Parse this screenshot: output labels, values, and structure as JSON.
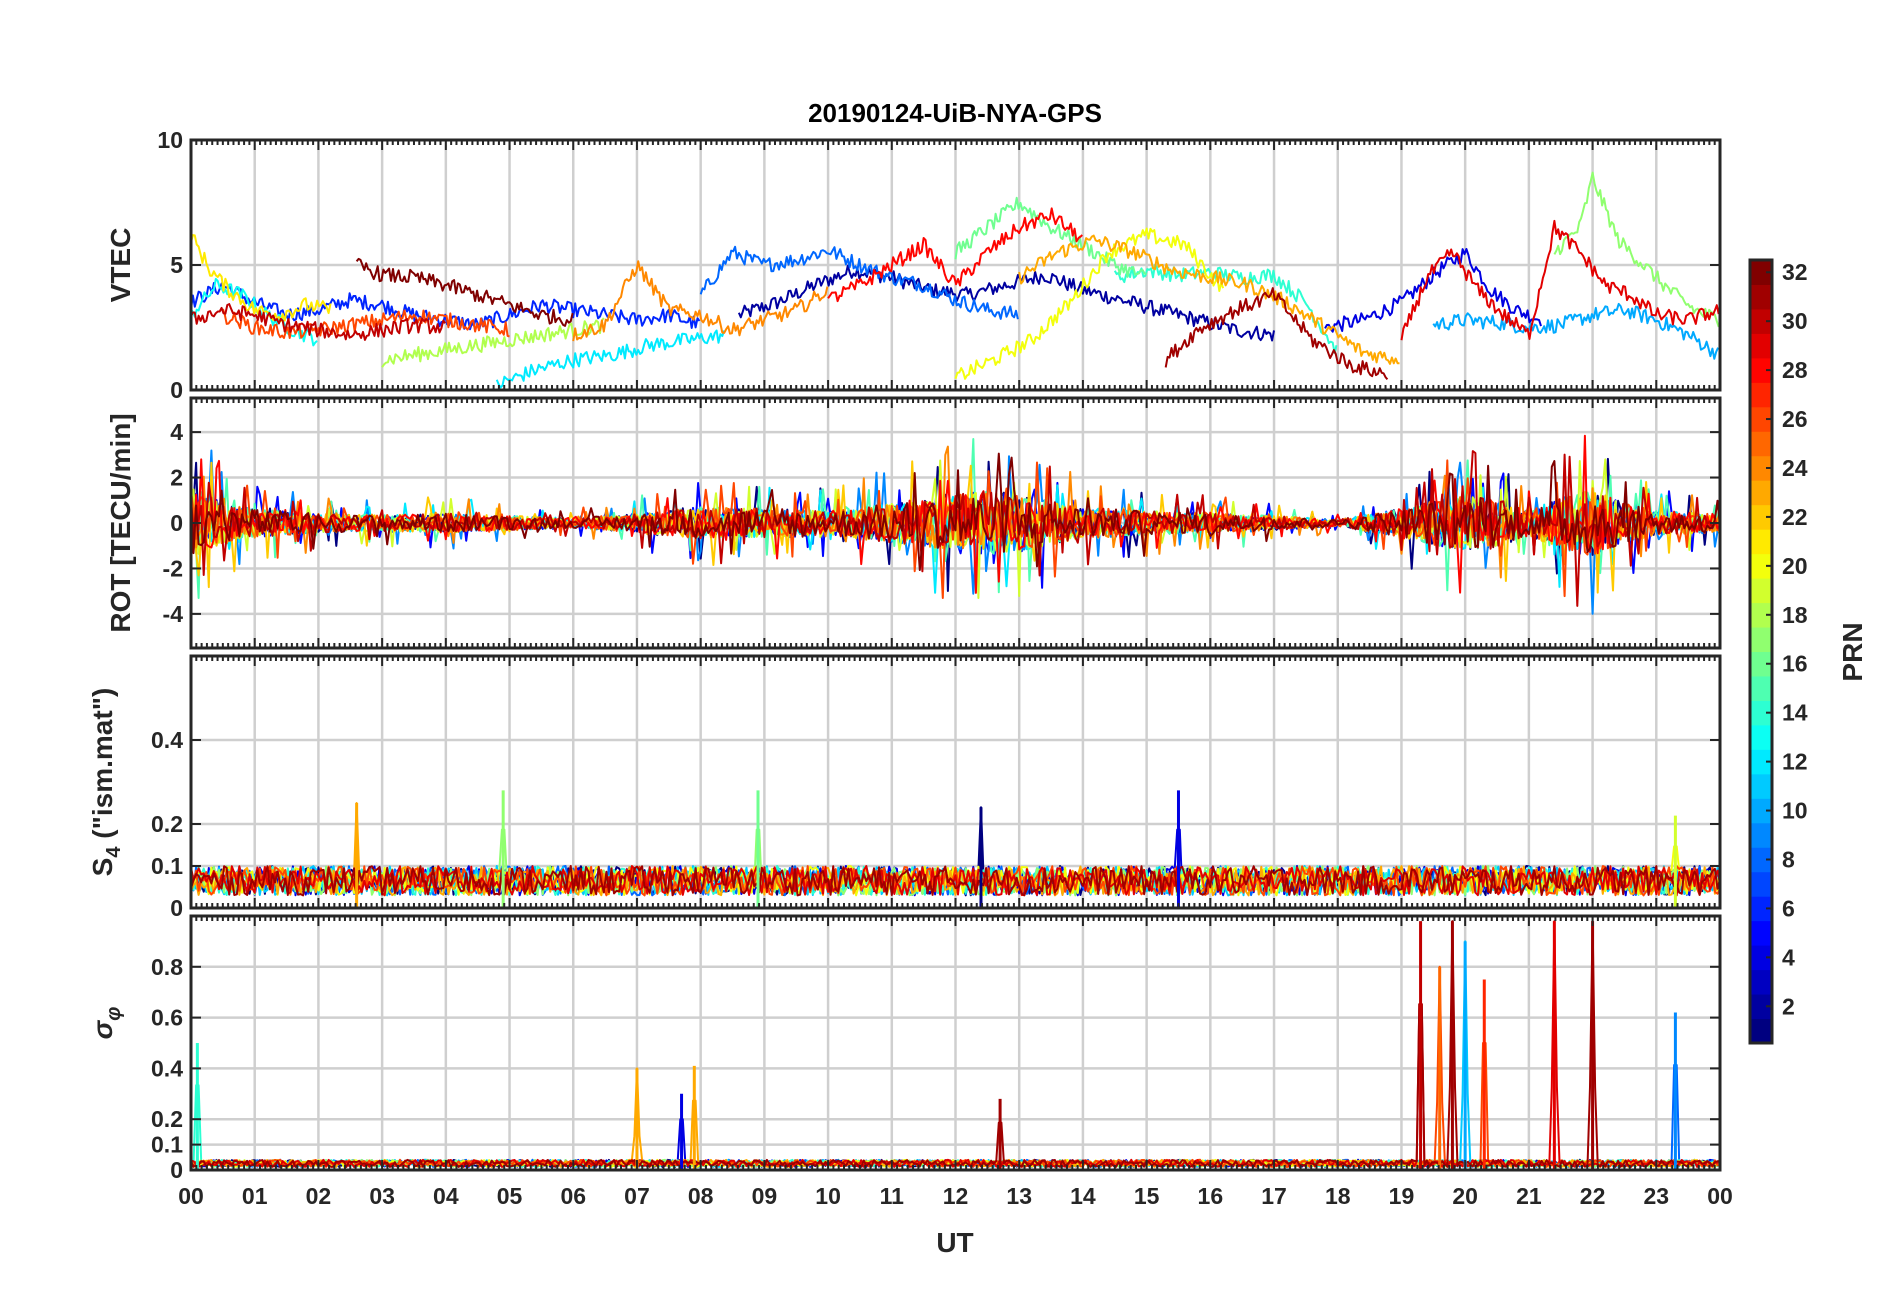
{
  "title": "20190124-UiB-NYA-GPS",
  "xlabel": "UT",
  "x_tick_labels": [
    "00",
    "01",
    "02",
    "03",
    "04",
    "05",
    "06",
    "07",
    "08",
    "09",
    "10",
    "11",
    "12",
    "13",
    "14",
    "15",
    "16",
    "17",
    "18",
    "19",
    "20",
    "21",
    "22",
    "23",
    "00"
  ],
  "colorbar": {
    "label": "PRN",
    "range": [
      1,
      32
    ],
    "ticks": [
      2,
      4,
      6,
      8,
      10,
      12,
      14,
      16,
      18,
      20,
      22,
      24,
      26,
      28,
      30,
      32
    ],
    "colormap": "jet"
  },
  "chart_data": [
    {
      "type": "line",
      "panel": "VTEC",
      "ylabel": "VTEC",
      "ylim": [
        0,
        10
      ],
      "yticks": [
        0,
        5,
        10
      ],
      "xlim_hours": [
        0,
        24
      ],
      "grid": true,
      "series_color_by": "PRN",
      "series": [
        {
          "prn": 2,
          "x_hours": [
            8.6,
            9.2,
            9.8,
            10.4,
            11.0,
            11.6,
            12.2,
            12.8,
            13.4,
            14.0,
            14.6,
            15.2,
            15.8,
            16.4,
            17.0
          ],
          "values": [
            3.0,
            3.5,
            4.2,
            4.8,
            4.5,
            4.0,
            3.8,
            4.2,
            4.6,
            4.0,
            3.6,
            3.2,
            2.8,
            2.4,
            2.2
          ]
        },
        {
          "prn": 4,
          "x_hours": [
            17.8,
            18.4,
            19.0,
            19.6,
            20.0,
            20.4,
            20.8,
            21.2
          ],
          "values": [
            2.5,
            2.8,
            3.5,
            4.8,
            5.5,
            4.0,
            3.2,
            2.8
          ]
        },
        {
          "prn": 6,
          "x_hours": [
            0.0,
            0.5,
            1.0,
            1.5,
            2.0,
            2.5,
            3.0,
            3.5,
            4.0,
            4.5,
            5.0,
            5.5,
            6.0,
            6.5,
            7.0,
            7.5,
            8.0
          ],
          "values": [
            3.5,
            4.2,
            3.5,
            3.0,
            3.2,
            3.6,
            3.4,
            3.0,
            2.8,
            2.6,
            3.0,
            3.4,
            3.2,
            3.0,
            2.8,
            3.0,
            2.6
          ]
        },
        {
          "prn": 8,
          "x_hours": [
            8.0,
            8.5,
            9.0,
            9.5,
            10.0,
            10.5,
            11.0,
            11.5,
            12.0,
            12.5,
            13.0
          ],
          "values": [
            3.8,
            5.5,
            5.0,
            5.2,
            5.6,
            5.0,
            4.5,
            4.2,
            3.6,
            3.2,
            3.0
          ]
        },
        {
          "prn": 10,
          "x_hours": [
            19.5,
            20.0,
            20.5,
            21.0,
            21.5,
            22.0,
            22.5,
            23.0,
            23.5,
            24.0
          ],
          "values": [
            2.6,
            2.8,
            2.7,
            2.5,
            2.6,
            3.0,
            3.2,
            2.8,
            2.2,
            1.4
          ]
        },
        {
          "prn": 12,
          "x_hours": [
            4.8,
            5.4,
            6.0,
            6.6,
            7.2,
            7.8,
            8.4
          ],
          "values": [
            0.2,
            0.8,
            1.2,
            1.4,
            1.8,
            2.0,
            2.2
          ]
        },
        {
          "prn": 13,
          "x_hours": [
            0.0,
            0.4,
            0.8,
            1.2,
            1.6,
            2.0
          ],
          "values": [
            3.0,
            4.2,
            3.8,
            3.0,
            2.4,
            2.0
          ]
        },
        {
          "prn": 14,
          "x_hours": [
            14.5,
            15.0,
            15.5,
            16.0,
            16.5,
            17.0,
            17.5,
            18.0
          ],
          "values": [
            4.5,
            4.8,
            4.6,
            4.7,
            4.5,
            4.6,
            3.5,
            1.5
          ]
        },
        {
          "prn": 16,
          "x_hours": [
            12.0,
            12.5,
            13.0,
            13.5,
            14.0,
            14.5,
            15.0
          ],
          "values": [
            5.5,
            6.5,
            7.5,
            6.5,
            5.8,
            5.0,
            4.5
          ]
        },
        {
          "prn": 17,
          "x_hours": [
            21.4,
            21.8,
            22.0,
            22.4,
            22.8,
            23.2,
            23.6,
            24.0
          ],
          "values": [
            5.5,
            6.5,
            8.5,
            6.0,
            5.0,
            4.0,
            3.2,
            2.8
          ]
        },
        {
          "prn": 18,
          "x_hours": [
            3.0,
            3.5,
            4.0,
            4.5,
            5.0,
            5.5,
            6.0,
            6.5
          ],
          "values": [
            1.2,
            1.4,
            1.6,
            1.8,
            2.0,
            2.2,
            2.4,
            2.6
          ]
        },
        {
          "prn": 20,
          "x_hours": [
            12.0,
            12.6,
            13.2,
            13.8,
            14.4,
            15.0,
            15.6,
            16.2
          ],
          "values": [
            0.5,
            1.2,
            2.0,
            3.5,
            5.5,
            6.2,
            5.8,
            4.0
          ]
        },
        {
          "prn": 21,
          "x_hours": [
            0.0,
            0.3,
            0.6,
            1.0,
            1.4,
            1.8,
            2.2
          ],
          "values": [
            6.2,
            4.8,
            4.0,
            3.2,
            3.0,
            3.4,
            3.2
          ]
        },
        {
          "prn": 23,
          "x_hours": [
            13.0,
            13.6,
            14.2,
            14.8,
            15.4,
            16.0,
            16.6,
            17.2,
            17.8,
            18.4,
            19.0
          ],
          "values": [
            4.5,
            5.5,
            6.0,
            5.5,
            4.8,
            4.5,
            4.2,
            3.5,
            2.5,
            1.5,
            1.2
          ]
        },
        {
          "prn": 24,
          "x_hours": [
            6.0,
            6.5,
            7.0,
            7.5,
            8.0,
            8.5,
            9.0,
            9.5,
            10.0
          ],
          "values": [
            2.2,
            2.6,
            5.0,
            3.2,
            3.0,
            2.4,
            2.8,
            3.2,
            4.0
          ]
        },
        {
          "prn": 26,
          "x_hours": [
            0.5,
            1.0,
            1.5,
            2.0,
            2.5,
            3.0,
            3.5,
            4.0,
            4.5,
            5.0
          ],
          "values": [
            3.0,
            2.5,
            2.3,
            2.4,
            2.6,
            2.8,
            3.0,
            2.8,
            2.6,
            2.4
          ]
        },
        {
          "prn": 28,
          "x_hours": [
            10.0,
            10.5,
            11.0,
            11.5,
            12.0,
            12.5,
            13.0,
            13.5,
            14.0
          ],
          "values": [
            3.6,
            4.2,
            5.0,
            5.8,
            4.2,
            5.5,
            6.5,
            7.0,
            6.0
          ]
        },
        {
          "prn": 29,
          "x_hours": [
            19.0,
            19.4,
            19.8,
            20.2,
            20.6,
            21.0,
            21.4,
            21.8,
            22.2,
            22.6,
            23.0,
            23.5,
            24.0
          ],
          "values": [
            2.0,
            4.5,
            5.5,
            4.0,
            3.0,
            2.2,
            6.5,
            5.5,
            4.2,
            3.8,
            3.0,
            2.8,
            3.2
          ]
        },
        {
          "prn": 30,
          "x_hours": [
            0.0,
            0.5,
            1.0,
            1.5,
            2.0,
            2.5,
            3.0,
            3.5,
            4.0
          ],
          "values": [
            2.8,
            3.2,
            3.0,
            2.6,
            2.4,
            2.2,
            2.4,
            2.6,
            2.5
          ]
        },
        {
          "prn": 32,
          "x_hours": [
            2.6,
            3.0,
            3.5,
            4.0,
            4.5,
            5.0,
            5.5,
            6.0
          ],
          "values": [
            5.0,
            4.6,
            4.5,
            4.2,
            3.8,
            3.4,
            3.0,
            2.8
          ]
        },
        {
          "prn": 31,
          "x_hours": [
            15.3,
            15.8,
            16.4,
            17.0,
            17.6,
            18.2,
            18.8
          ],
          "values": [
            1.2,
            2.4,
            3.2,
            3.8,
            2.0,
            1.0,
            0.6
          ]
        }
      ]
    },
    {
      "type": "line",
      "panel": "ROT",
      "ylabel": "ROT [TECU/min]",
      "ylim": [
        -5.5,
        5.5
      ],
      "yticks": [
        -4,
        -2,
        0,
        2,
        4
      ],
      "xlim_hours": [
        0,
        24
      ],
      "grid": true,
      "series_color_by": "PRN",
      "envelope_hours": [
        0,
        0.5,
        1,
        2,
        3,
        4,
        5,
        6,
        7,
        8,
        9,
        10,
        11,
        12,
        12.5,
        13,
        14,
        15,
        16,
        17,
        18,
        19,
        19.5,
        20,
        20.5,
        21,
        21.5,
        22,
        22.5,
        23,
        24
      ],
      "envelope_max_abs": [
        4.5,
        2.5,
        1.8,
        1.2,
        1.0,
        1.2,
        0.9,
        0.6,
        1.2,
        2.0,
        1.8,
        1.5,
        2.5,
        3.5,
        4.2,
        3.5,
        2.0,
        1.5,
        1.2,
        0.9,
        0.4,
        1.8,
        2.8,
        3.5,
        3.0,
        1.6,
        3.2,
        4.2,
        2.5,
        1.5,
        1.2
      ]
    },
    {
      "type": "line",
      "panel": "S4",
      "ylabel": "S4 (\"ism.mat\")",
      "ylim": [
        0,
        0.6
      ],
      "yticks": [
        0,
        0.1,
        0.2,
        0.4
      ],
      "xlim_hours": [
        0,
        24
      ],
      "grid": true,
      "series_color_by": "PRN",
      "baseline_typical": 0.05,
      "notable_peaks": [
        {
          "x_hours": 2.6,
          "value": 0.25,
          "prn": 23
        },
        {
          "x_hours": 4.9,
          "value": 0.28,
          "prn": 17
        },
        {
          "x_hours": 8.9,
          "value": 0.28,
          "prn": 16
        },
        {
          "x_hours": 15.5,
          "value": 0.28,
          "prn": 4
        },
        {
          "x_hours": 12.4,
          "value": 0.24,
          "prn": 1
        },
        {
          "x_hours": 23.3,
          "value": 0.22,
          "prn": 19
        }
      ]
    },
    {
      "type": "line",
      "panel": "sigma_phi",
      "ylabel": "σφ",
      "ylim": [
        0,
        1.0
      ],
      "yticks": [
        0,
        0.1,
        0.2,
        0.4,
        0.6,
        0.8
      ],
      "xlim_hours": [
        0,
        24
      ],
      "grid": true,
      "series_color_by": "PRN",
      "baseline_typical": 0.02,
      "notable_peaks": [
        {
          "x_hours": 0.1,
          "value": 0.5,
          "prn": 14
        },
        {
          "x_hours": 7.0,
          "value": 0.4,
          "prn": 23
        },
        {
          "x_hours": 7.9,
          "value": 0.41,
          "prn": 23
        },
        {
          "x_hours": 7.7,
          "value": 0.3,
          "prn": 4
        },
        {
          "x_hours": 12.7,
          "value": 0.28,
          "prn": 31
        },
        {
          "x_hours": 19.3,
          "value": 0.98,
          "prn": 30
        },
        {
          "x_hours": 19.6,
          "value": 0.8,
          "prn": 25
        },
        {
          "x_hours": 19.8,
          "value": 0.98,
          "prn": 31
        },
        {
          "x_hours": 20.0,
          "value": 0.9,
          "prn": 10
        },
        {
          "x_hours": 20.3,
          "value": 0.75,
          "prn": 27
        },
        {
          "x_hours": 21.4,
          "value": 0.98,
          "prn": 29
        },
        {
          "x_hours": 22.0,
          "value": 0.98,
          "prn": 31
        },
        {
          "x_hours": 23.3,
          "value": 0.62,
          "prn": 9
        }
      ]
    }
  ]
}
